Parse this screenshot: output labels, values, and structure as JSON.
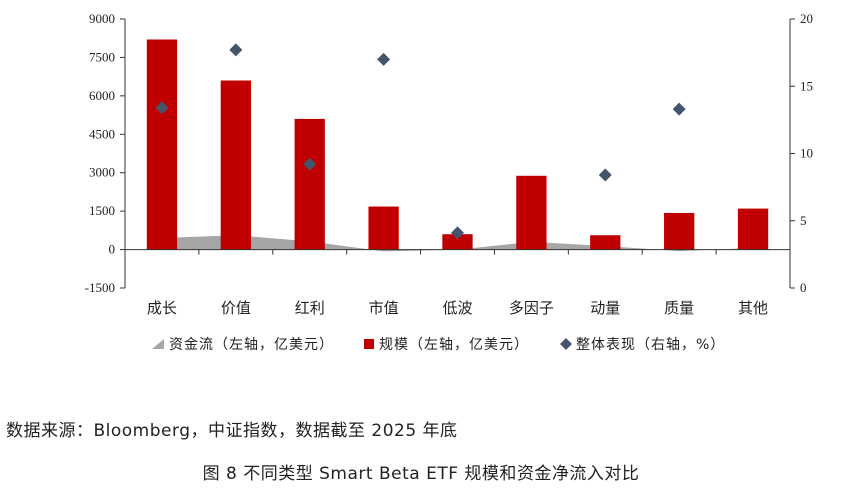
{
  "chart_data": {
    "type": "bar",
    "categories": [
      "成长",
      "价值",
      "红利",
      "市值",
      "低波",
      "多因子",
      "动量",
      "质量",
      "其他"
    ],
    "series": [
      {
        "name": "资金流（左轴，亿美元）",
        "kind": "area",
        "axis": "left",
        "color": "#a6a6a6",
        "values": [
          450,
          560,
          320,
          -70,
          0,
          300,
          140,
          -60,
          60
        ]
      },
      {
        "name": "规模（左轴，亿美元）",
        "kind": "bar",
        "axis": "left",
        "color": "#c00000",
        "values": [
          8200,
          6600,
          5100,
          1680,
          600,
          2880,
          560,
          1430,
          1600
        ]
      },
      {
        "name": "整体表现（右轴，%）",
        "kind": "scatter",
        "axis": "right",
        "color": "#44546a",
        "values": [
          13.4,
          17.7,
          9.2,
          17.0,
          4.1,
          null,
          8.4,
          13.3,
          null
        ]
      }
    ],
    "y_left": {
      "ylim": [
        -1500,
        9000
      ],
      "ticks": [
        "-1500",
        "0",
        "1500",
        "3000",
        "4500",
        "6000",
        "7500",
        "9000"
      ]
    },
    "y_right": {
      "ylim": [
        0,
        20
      ],
      "ticks": [
        "0",
        "5",
        "10",
        "15",
        "20"
      ]
    },
    "legend_position": "bottom",
    "grid": false
  },
  "source_text": "数据来源：Bloomberg，中证指数，数据截至 2025 年底",
  "caption": "图 8  不同类型 Smart Beta ETF 规模和资金净流入对比"
}
